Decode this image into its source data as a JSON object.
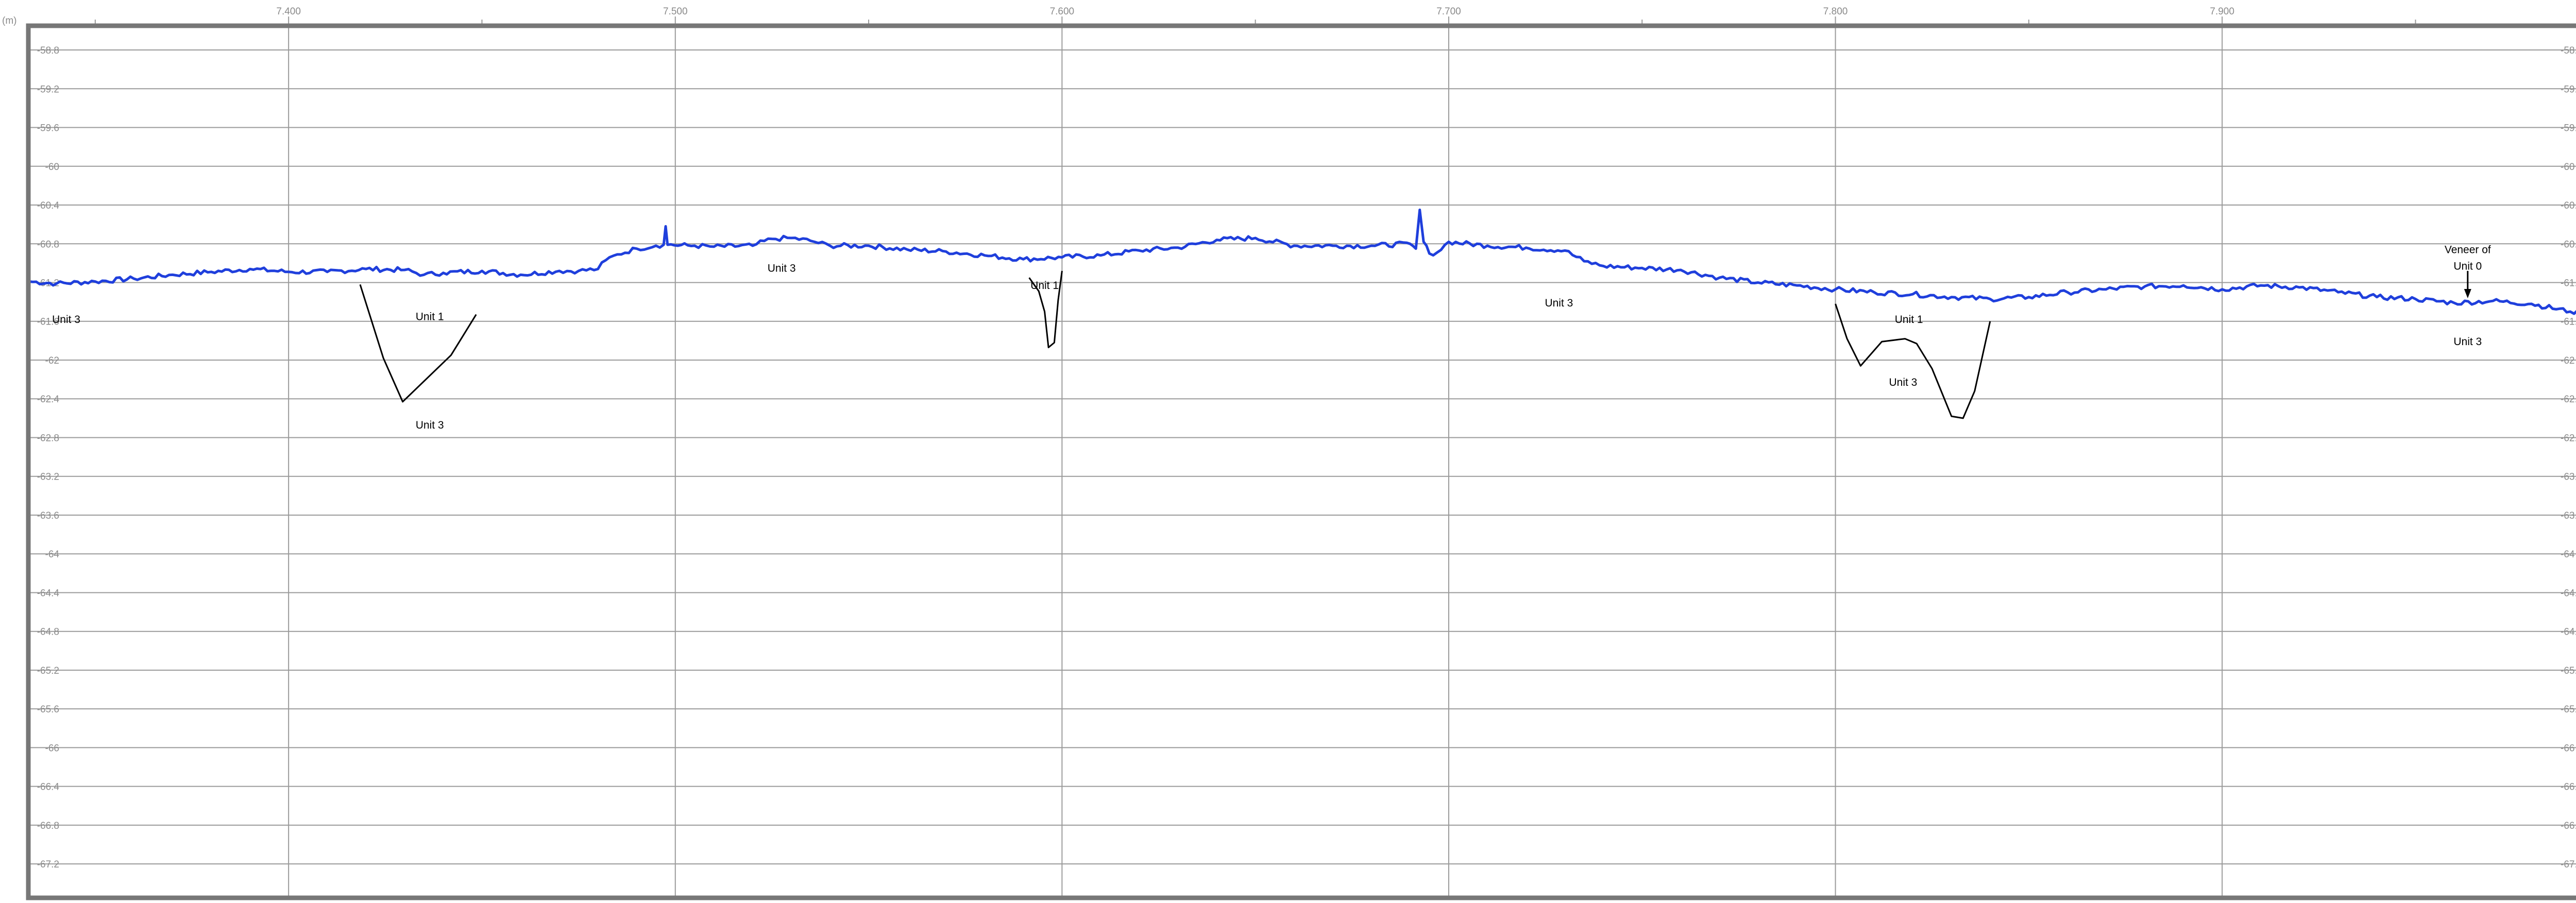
{
  "chart_data": {
    "type": "line",
    "title": "",
    "xlabel": "",
    "ylabel": "",
    "y_unit_left": "(m)",
    "y_unit_right": "(m)",
    "x_tick_labels": [
      "7.400",
      "7.500",
      "7.600",
      "7.700",
      "7.800",
      "7.900"
    ],
    "x_ticks": [
      7.4,
      7.5,
      7.6,
      7.7,
      7.8,
      7.9
    ],
    "y_tick_labels": [
      "-58.8",
      "-59.2",
      "-59.6",
      "-60",
      "-60.4",
      "-60.8",
      "-61.2",
      "-61.6",
      "-62",
      "-62.4",
      "-62.8",
      "-63.2",
      "-63.6",
      "-64",
      "-64.4",
      "-64.8",
      "-65.2",
      "-65.6",
      "-66",
      "-66.4",
      "-66.8",
      "-67.2"
    ],
    "y_ticks": [
      -58.8,
      -59.2,
      -59.6,
      -60,
      -60.4,
      -60.8,
      -61.2,
      -61.6,
      -62,
      -62.4,
      -62.8,
      -63.2,
      -63.6,
      -64,
      -64.4,
      -64.8,
      -65.2,
      -65.6,
      -66,
      -66.4,
      -66.8,
      -67.2
    ],
    "xlim": [
      7.3327,
      7.9955
    ],
    "ylim": [
      -67.55,
      -58.55
    ],
    "grid": true,
    "line_color": "#1f3fdc",
    "contact_color": "#000000",
    "series": [
      {
        "values": [
          [
            7.333,
            -61.19
          ],
          [
            7.34,
            -61.21
          ],
          [
            7.35,
            -61.19
          ],
          [
            7.36,
            -61.16
          ],
          [
            7.37,
            -61.12
          ],
          [
            7.38,
            -61.09
          ],
          [
            7.39,
            -61.06
          ],
          [
            7.4,
            -61.09
          ],
          [
            7.41,
            -61.09
          ],
          [
            7.42,
            -61.06
          ],
          [
            7.43,
            -61.07
          ],
          [
            7.435,
            -61.12
          ],
          [
            7.44,
            -61.1
          ],
          [
            7.45,
            -61.08
          ],
          [
            7.46,
            -61.12
          ],
          [
            7.47,
            -61.08
          ],
          [
            7.475,
            -61.08
          ],
          [
            7.48,
            -61.06
          ],
          [
            7.482,
            -60.97
          ],
          [
            7.485,
            -60.91
          ],
          [
            7.49,
            -60.85
          ],
          [
            7.495,
            -60.82
          ],
          [
            7.497,
            -60.81
          ],
          [
            7.4975,
            -60.62
          ],
          [
            7.498,
            -60.81
          ],
          [
            7.505,
            -60.82
          ],
          [
            7.51,
            -60.83
          ],
          [
            7.52,
            -60.82
          ],
          [
            7.525,
            -60.75
          ],
          [
            7.53,
            -60.74
          ],
          [
            7.535,
            -60.77
          ],
          [
            7.54,
            -60.82
          ],
          [
            7.55,
            -60.82
          ],
          [
            7.56,
            -60.86
          ],
          [
            7.57,
            -60.88
          ],
          [
            7.58,
            -60.92
          ],
          [
            7.59,
            -60.96
          ],
          [
            7.6,
            -60.94
          ],
          [
            7.61,
            -60.92
          ],
          [
            7.62,
            -60.87
          ],
          [
            7.63,
            -60.84
          ],
          [
            7.64,
            -60.76
          ],
          [
            7.65,
            -60.74
          ],
          [
            7.66,
            -60.82
          ],
          [
            7.67,
            -60.82
          ],
          [
            7.68,
            -60.82
          ],
          [
            7.69,
            -60.8
          ],
          [
            7.6915,
            -60.85
          ],
          [
            7.6925,
            -60.45
          ],
          [
            7.6935,
            -60.78
          ],
          [
            7.695,
            -60.9
          ],
          [
            7.697,
            -60.89
          ],
          [
            7.7,
            -60.78
          ],
          [
            7.71,
            -60.82
          ],
          [
            7.72,
            -60.84
          ],
          [
            7.73,
            -60.87
          ],
          [
            7.735,
            -60.98
          ],
          [
            7.74,
            -61.03
          ],
          [
            7.75,
            -61.05
          ],
          [
            7.76,
            -61.07
          ],
          [
            7.77,
            -61.15
          ],
          [
            7.78,
            -61.2
          ],
          [
            7.79,
            -61.23
          ],
          [
            7.8,
            -61.27
          ],
          [
            7.81,
            -61.3
          ],
          [
            7.82,
            -61.32
          ],
          [
            7.83,
            -61.35
          ],
          [
            7.84,
            -61.37
          ],
          [
            7.85,
            -61.35
          ],
          [
            7.86,
            -61.3
          ],
          [
            7.87,
            -61.27
          ],
          [
            7.88,
            -61.24
          ],
          [
            7.89,
            -61.23
          ],
          [
            7.9,
            -61.27
          ],
          [
            7.91,
            -61.23
          ],
          [
            7.92,
            -61.25
          ],
          [
            7.93,
            -61.3
          ],
          [
            7.94,
            -61.35
          ],
          [
            7.95,
            -61.37
          ],
          [
            7.96,
            -61.41
          ],
          [
            7.97,
            -61.39
          ],
          [
            7.98,
            -61.42
          ],
          [
            7.99,
            -61.5
          ],
          [
            7.995,
            -61.52
          ]
        ]
      }
    ],
    "contacts": [
      [
        [
          7.4185,
          -61.22
        ],
        [
          7.4245,
          -61.98
        ],
        [
          7.4295,
          -62.43
        ],
        [
          7.442,
          -61.95
        ],
        [
          7.4485,
          -61.53
        ]
      ],
      [
        [
          7.5915,
          -61.15
        ],
        [
          7.594,
          -61.29
        ],
        [
          7.5955,
          -61.5
        ],
        [
          7.5965,
          -61.87
        ],
        [
          7.598,
          -61.82
        ],
        [
          7.599,
          -61.38
        ],
        [
          7.6,
          -61.08
        ]
      ],
      [
        [
          7.8,
          -61.42
        ],
        [
          7.803,
          -61.78
        ],
        [
          7.8065,
          -62.06
        ],
        [
          7.812,
          -61.81
        ],
        [
          7.818,
          -61.78
        ],
        [
          7.821,
          -61.83
        ],
        [
          7.825,
          -62.09
        ],
        [
          7.83,
          -62.58
        ],
        [
          7.833,
          -62.6
        ],
        [
          7.836,
          -62.32
        ],
        [
          7.84,
          -61.6
        ]
      ],
      [
        [
          7.9635,
          -61.08
        ],
        [
          7.9635,
          -61.33
        ]
      ]
    ],
    "annotations": [
      {
        "text": "Unit 3",
        "x": 7.3425,
        "y": -61.58
      },
      {
        "text": "Unit 1",
        "x": 7.4365,
        "y": -61.55
      },
      {
        "text": "Unit 3",
        "x": 7.4365,
        "y": -62.67
      },
      {
        "text": "Unit 3",
        "x": 7.5275,
        "y": -61.05
      },
      {
        "text": "Unit 1",
        "x": 7.5955,
        "y": -61.23
      },
      {
        "text": "Unit 3",
        "x": 7.7285,
        "y": -61.41
      },
      {
        "text": "Unit 1",
        "x": 7.819,
        "y": -61.58
      },
      {
        "text": "Unit 3",
        "x": 7.8175,
        "y": -62.23
      },
      {
        "text": "Veneer of",
        "x": 7.9635,
        "y": -60.86
      },
      {
        "text": "Unit 0",
        "x": 7.9635,
        "y": -61.03
      },
      {
        "text": "Unit 3",
        "x": 7.9635,
        "y": -61.81
      }
    ]
  }
}
